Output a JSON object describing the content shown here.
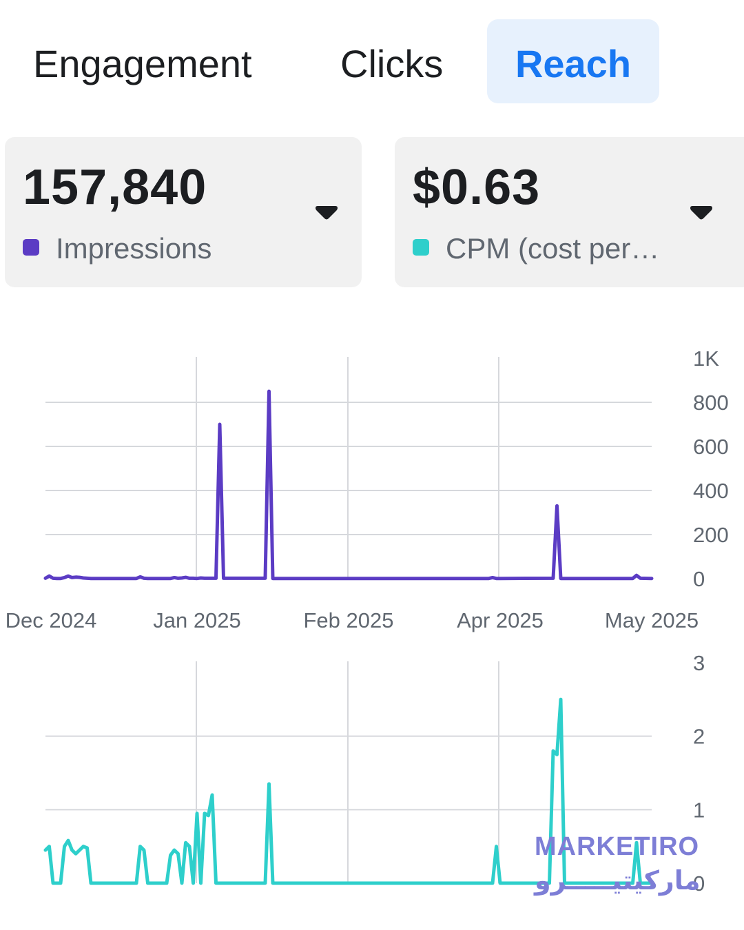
{
  "tabs": [
    {
      "label": "Engagement",
      "active": false
    },
    {
      "label": "Clicks",
      "active": false
    },
    {
      "label": "Reach",
      "active": true
    }
  ],
  "metrics": [
    {
      "value": "157,840",
      "label": "Impressions",
      "color": "#5b3cc4"
    },
    {
      "value": "$0.63",
      "label": "CPM (cost per…",
      "color": "#2ecfcb"
    }
  ],
  "watermark": {
    "text_en": "MARKETIRO",
    "text_ar": "ماركيتيـــــرو"
  },
  "chart_data": [
    {
      "type": "line",
      "title": "Impressions",
      "color": "#5b3cc4",
      "x_tick_labels": [
        "Dec 2024",
        "Jan 2025",
        "Feb 2025",
        "Apr 2025",
        "May 2025"
      ],
      "y_tick_labels": [
        "0",
        "200",
        "400",
        "600",
        "800",
        "1K"
      ],
      "ylim": [
        0,
        1000
      ],
      "x_index_range": [
        0,
        144
      ],
      "x_tick_index": [
        0,
        40,
        80,
        120,
        160
      ],
      "series": [
        {
          "name": "Impressions",
          "points": [
            [
              0,
              2
            ],
            [
              1,
              12
            ],
            [
              2,
              2
            ],
            [
              3,
              1
            ],
            [
              4,
              1
            ],
            [
              5,
              5
            ],
            [
              6,
              12
            ],
            [
              7,
              5
            ],
            [
              8,
              7
            ],
            [
              9,
              6
            ],
            [
              10,
              3
            ],
            [
              11,
              2
            ],
            [
              12,
              1
            ],
            [
              13,
              1
            ],
            [
              24,
              1
            ],
            [
              25,
              8
            ],
            [
              26,
              2
            ],
            [
              27,
              1
            ],
            [
              33,
              1
            ],
            [
              34,
              5
            ],
            [
              35,
              2
            ],
            [
              36,
              3
            ],
            [
              37,
              6
            ],
            [
              38,
              2
            ],
            [
              39,
              2
            ],
            [
              40,
              1
            ],
            [
              41,
              3
            ],
            [
              42,
              2
            ],
            [
              43,
              2
            ],
            [
              45,
              2
            ],
            [
              46,
              700
            ],
            [
              47,
              2
            ],
            [
              58,
              2
            ],
            [
              59,
              850
            ],
            [
              60,
              1
            ],
            [
              94,
              1
            ],
            [
              117,
              1
            ],
            [
              118,
              5
            ],
            [
              119,
              1
            ],
            [
              120,
              1
            ],
            [
              134,
              2
            ],
            [
              135,
              330
            ],
            [
              136,
              1
            ],
            [
              155,
              1
            ],
            [
              156,
              15
            ],
            [
              157,
              2
            ],
            [
              160,
              1
            ]
          ]
        }
      ]
    },
    {
      "type": "line",
      "title": "CPM (cost per…",
      "color": "#2ecfcb",
      "x_tick_labels": [
        "Dec 2024",
        "Jan 2025",
        "Feb 2025",
        "Apr 2025",
        "May 2025"
      ],
      "y_tick_labels": [
        "0",
        "1",
        "2",
        "3"
      ],
      "ylim": [
        0,
        3
      ],
      "series": [
        {
          "name": "CPM",
          "points": [
            [
              0,
              0.45
            ],
            [
              1,
              0.5
            ],
            [
              2,
              0
            ],
            [
              3,
              0
            ],
            [
              4,
              0
            ],
            [
              5,
              0.5
            ],
            [
              6,
              0.58
            ],
            [
              7,
              0.45
            ],
            [
              8,
              0.4
            ],
            [
              9,
              0.45
            ],
            [
              10,
              0.5
            ],
            [
              11,
              0.48
            ],
            [
              12,
              0
            ],
            [
              24,
              0
            ],
            [
              25,
              0.5
            ],
            [
              26,
              0.45
            ],
            [
              27,
              0
            ],
            [
              32,
              0
            ],
            [
              33,
              0.38
            ],
            [
              34,
              0.45
            ],
            [
              35,
              0.4
            ],
            [
              36,
              0
            ],
            [
              37,
              0.55
            ],
            [
              38,
              0.5
            ],
            [
              39,
              0
            ],
            [
              40,
              0.95
            ],
            [
              41,
              0
            ],
            [
              42,
              0.95
            ],
            [
              43,
              0.92
            ],
            [
              44,
              1.2
            ],
            [
              45,
              0
            ],
            [
              58,
              0
            ],
            [
              59,
              1.35
            ],
            [
              60,
              0
            ],
            [
              118,
              0
            ],
            [
              119,
              0.5
            ],
            [
              120,
              0
            ],
            [
              133,
              0
            ],
            [
              134,
              1.8
            ],
            [
              135,
              1.75
            ],
            [
              136,
              2.5
            ],
            [
              137,
              0
            ],
            [
              155,
              0
            ],
            [
              156,
              0.55
            ],
            [
              157,
              0
            ],
            [
              160,
              0
            ]
          ]
        }
      ]
    }
  ]
}
